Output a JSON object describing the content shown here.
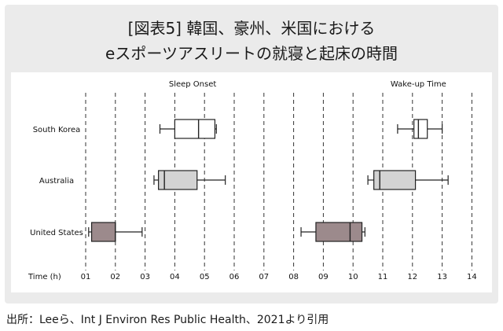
{
  "header": {
    "title_line1": "[図表5] 韓国、豪州、米国における",
    "title_line2": "eスポーツアスリートの就寝と起床の時間"
  },
  "footer": {
    "source": "出所：Leeら、Int J Environ Res Public Health、2021より引用"
  },
  "chart_data": {
    "type": "boxplot",
    "xlabel": "Time (h)",
    "x_tick_labels": [
      "01",
      "02",
      "03",
      "04",
      "05",
      "06",
      "07",
      "08",
      "09",
      "10",
      "11",
      "12",
      "13",
      "14"
    ],
    "xlim": [
      0.5,
      14.5
    ],
    "grid": "vertical dashed",
    "categories": [
      "South Korea",
      "Australia",
      "United States"
    ],
    "panels": [
      {
        "title": "Sleep Onset",
        "boxes": [
          {
            "category": "South Korea",
            "whisker_low": 3.5,
            "q1": 4.0,
            "median": 4.8,
            "q3": 5.35,
            "whisker_high": 5.4,
            "fill": "#ffffff"
          },
          {
            "category": "Australia",
            "whisker_low": 3.3,
            "q1": 3.45,
            "median": 3.65,
            "q3": 4.75,
            "whisker_high": 5.7,
            "fill": "#d3d3d3"
          },
          {
            "category": "United States",
            "whisker_low": 1.1,
            "q1": 1.2,
            "median": 2.0,
            "q3": 2.0,
            "whisker_high": 2.9,
            "fill": "#9c8a8c"
          }
        ]
      },
      {
        "title": "Wake-up Time",
        "boxes": [
          {
            "category": "South Korea",
            "whisker_low": 11.5,
            "q1": 12.05,
            "median": 12.2,
            "q3": 12.5,
            "whisker_high": 13.0,
            "fill": "#ffffff"
          },
          {
            "category": "Australia",
            "whisker_low": 10.5,
            "q1": 10.7,
            "median": 10.9,
            "q3": 12.1,
            "whisker_high": 13.2,
            "fill": "#d3d3d3"
          },
          {
            "category": "United States",
            "whisker_low": 8.25,
            "q1": 8.75,
            "median": 9.9,
            "q3": 10.3,
            "whisker_high": 10.4,
            "fill": "#9c8a8c"
          }
        ]
      }
    ]
  }
}
